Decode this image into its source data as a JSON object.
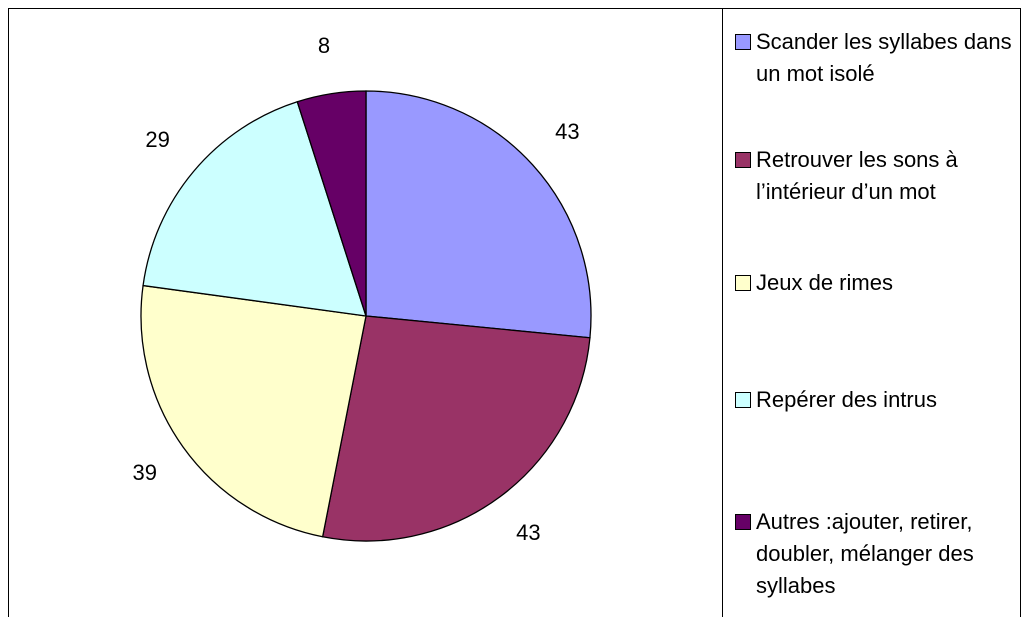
{
  "chart_data": {
    "type": "pie",
    "categories": [
      "Scander les syllabes dans un mot isolé",
      "Retrouver les sons à l’intérieur d’un mot",
      "Jeux de rimes",
      "Repérer des intrus",
      "Autres :ajouter, retirer, doubler, mélanger des syllabes"
    ],
    "values": [
      43,
      43,
      39,
      29,
      8
    ],
    "colors": [
      "#9999ff",
      "#993366",
      "#ffffcc",
      "#ccffff",
      "#660066"
    ],
    "legend": "right"
  }
}
